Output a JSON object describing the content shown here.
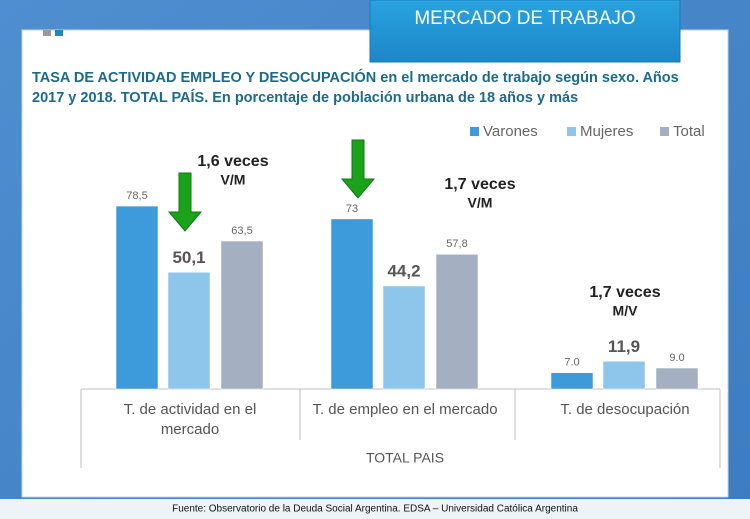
{
  "header": "MERCADO DE TRABAJO",
  "footer": "Fuente:  Observatorio de  la Deuda Social Argentina. EDSA  – Universidad Católica Argentina",
  "chart_data": {
    "type": "bar",
    "title": [
      "TASA DE ACTIVIDAD EMPLEO Y DESOCUPACIÓN en el mercado de trabajo según sexo. Años",
      "2017 y 2018. TOTAL PAÍS. En porcentaje de población urbana de 18 años y más"
    ],
    "categories": [
      [
        "T. de actividad en el",
        "mercado"
      ],
      [
        "T. de empleo en el mercado"
      ],
      [
        "T. de desocupación"
      ]
    ],
    "x_label": "TOTAL PAIS",
    "series": [
      {
        "name": "Varones",
        "color": "#3d9bdb",
        "values": [
          78.5,
          73,
          7.0
        ],
        "value_labels": [
          "78,5",
          "73",
          "7.0"
        ]
      },
      {
        "name": "Mujeres",
        "color": "#8ec5ea",
        "values": [
          50.1,
          44.2,
          11.9
        ],
        "value_labels": [
          "50,1",
          "44,2",
          "11,9"
        ]
      },
      {
        "name": "Total",
        "color": "#a4afc1",
        "values": [
          63.5,
          57.8,
          9.0
        ],
        "value_labels": [
          "63,5",
          "57,8",
          "9.0"
        ]
      }
    ],
    "annotations": [
      [
        "1,6 veces",
        "V/M"
      ],
      [
        "1,7 veces",
        "V/M"
      ],
      [
        "1,7 veces",
        "M/V"
      ]
    ]
  }
}
